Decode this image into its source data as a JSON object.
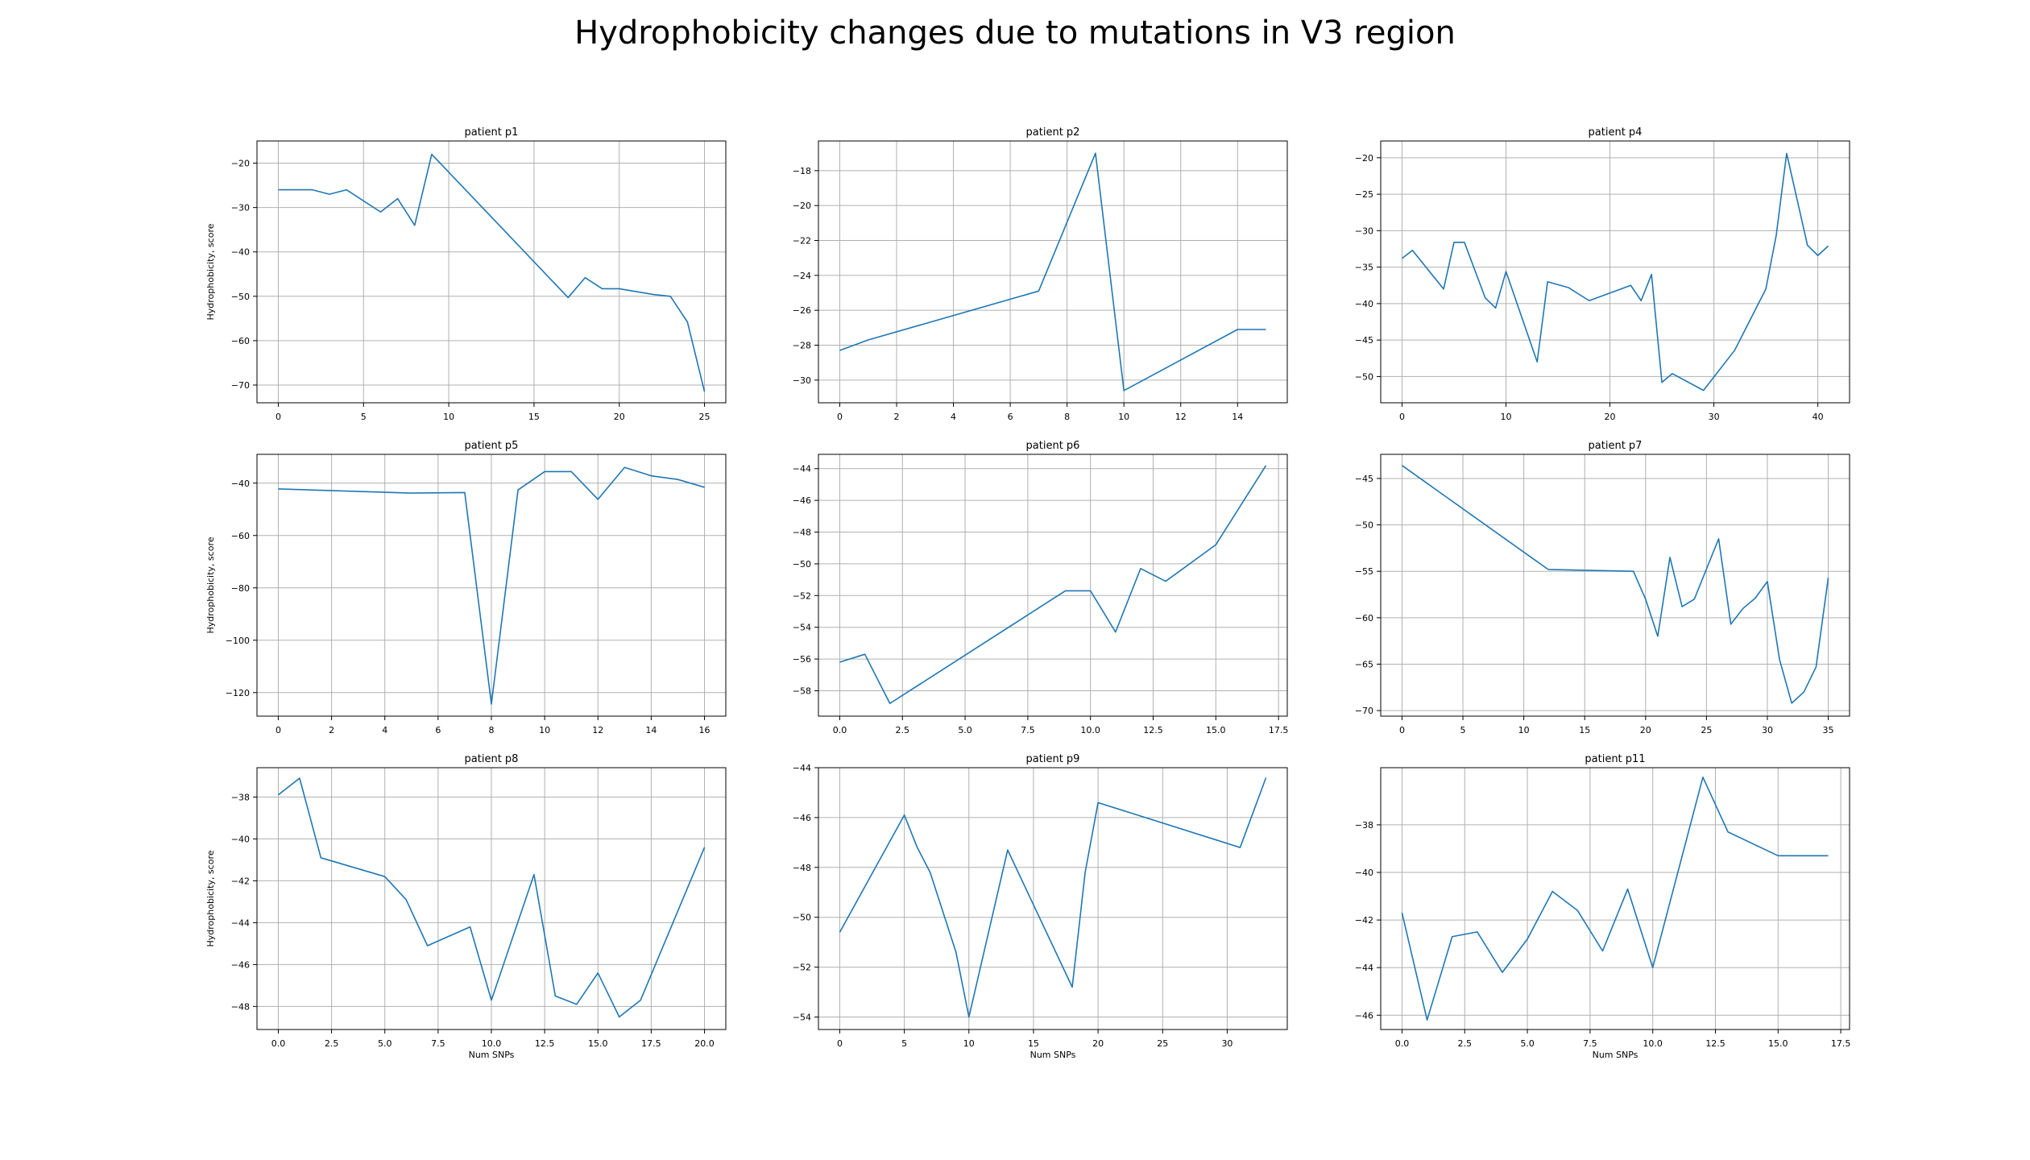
{
  "figure": {
    "title": "Hydrophobicity changes due to mutations in V3 region"
  },
  "colors": {
    "line": "#1f77b4",
    "grid": "#b0b0b0",
    "axis": "#000000"
  },
  "chart_data": [
    {
      "type": "line",
      "title": "patient p1",
      "ylabel": "Hydrophobicity, score",
      "xlabel": "",
      "xlim": [
        -1.25,
        26.25
      ],
      "ylim": [
        -74,
        -15
      ],
      "xticks": [
        0,
        5,
        10,
        15,
        20,
        25
      ],
      "xtick_labels": [
        "0",
        "5",
        "10",
        "15",
        "20",
        "25"
      ],
      "yticks": [
        -70,
        -60,
        -50,
        -40,
        -30,
        -20
      ],
      "ytick_labels": [
        "−70",
        "−60",
        "−50",
        "−40",
        "−30",
        "−20"
      ],
      "x": [
        0,
        2,
        3,
        4,
        6,
        7,
        8,
        9,
        17,
        18,
        19,
        20,
        22,
        23,
        24,
        25
      ],
      "y": [
        -26,
        -26,
        -27,
        -26,
        -31,
        -28,
        -34,
        -18,
        -50.3,
        -45.8,
        -48.3,
        -48.3,
        -49.6,
        -50,
        -55.8,
        -71.5
      ]
    },
    {
      "type": "line",
      "title": "patient p2",
      "ylabel": "",
      "xlabel": "",
      "xlim": [
        -0.75,
        15.75
      ],
      "ylim": [
        -31.3,
        -16.3
      ],
      "xticks": [
        0,
        2,
        4,
        6,
        8,
        10,
        12,
        14
      ],
      "xtick_labels": [
        "0",
        "2",
        "4",
        "6",
        "8",
        "10",
        "12",
        "14"
      ],
      "yticks": [
        -30,
        -28,
        -26,
        -24,
        -22,
        -20,
        -18
      ],
      "ytick_labels": [
        "−30",
        "−28",
        "−26",
        "−24",
        "−22",
        "−20",
        "−18"
      ],
      "x": [
        0,
        1,
        7,
        9,
        10,
        14,
        15
      ],
      "y": [
        -28.3,
        -27.7,
        -24.9,
        -17,
        -30.6,
        -27.1,
        -27.1
      ]
    },
    {
      "type": "line",
      "title": "patient p4",
      "ylabel": "",
      "xlabel": "",
      "xlim": [
        -2.05,
        43.05
      ],
      "ylim": [
        -53.6,
        -17.7
      ],
      "xticks": [
        0,
        10,
        20,
        30,
        40
      ],
      "xtick_labels": [
        "0",
        "10",
        "20",
        "30",
        "40"
      ],
      "yticks": [
        -50,
        -45,
        -40,
        -35,
        -30,
        -25,
        -20
      ],
      "ytick_labels": [
        "−50",
        "−45",
        "−40",
        "−35",
        "−30",
        "−25",
        "−20"
      ],
      "x": [
        0,
        1,
        4,
        5,
        6,
        8,
        9,
        10,
        13,
        14,
        16,
        18,
        22,
        23,
        24,
        25,
        26,
        29,
        32,
        35,
        36,
        37,
        39,
        40,
        41
      ],
      "y": [
        -33.8,
        -32.7,
        -38,
        -31.6,
        -31.6,
        -39.2,
        -40.6,
        -35.6,
        -48,
        -37,
        -37.8,
        -39.6,
        -37.5,
        -39.6,
        -36,
        -50.8,
        -49.6,
        -51.9,
        -46.4,
        -38,
        -30.6,
        -19.4,
        -32,
        -33.4,
        -32.1
      ]
    },
    {
      "type": "line",
      "title": "patient p5",
      "ylabel": "Hydrophobicity, score",
      "xlabel": "",
      "xlim": [
        -0.8,
        16.8
      ],
      "ylim": [
        -129,
        -29
      ],
      "xticks": [
        0,
        2,
        4,
        6,
        8,
        10,
        12,
        14,
        16
      ],
      "xtick_labels": [
        "0",
        "2",
        "4",
        "6",
        "8",
        "10",
        "12",
        "14",
        "16"
      ],
      "yticks": [
        -120,
        -100,
        -80,
        -60,
        -40
      ],
      "ytick_labels": [
        "−120",
        "−100",
        "−80",
        "−60",
        "−40"
      ],
      "x": [
        0,
        5,
        7,
        8,
        9,
        10,
        11,
        12,
        13,
        14,
        15,
        16
      ],
      "y": [
        -42.2,
        -43.8,
        -43.6,
        -124.4,
        -42.6,
        -35.6,
        -35.6,
        -46.2,
        -34,
        -37.2,
        -38.6,
        -41.6
      ]
    },
    {
      "type": "line",
      "title": "patient p6",
      "ylabel": "",
      "xlabel": "",
      "xlim": [
        -0.85,
        17.85
      ],
      "ylim": [
        -59.6,
        -43.1
      ],
      "xticks": [
        0,
        2.5,
        5,
        7.5,
        10,
        12.5,
        15,
        17.5
      ],
      "xtick_labels": [
        "0.0",
        "2.5",
        "5.0",
        "7.5",
        "10.0",
        "12.5",
        "15.0",
        "17.5"
      ],
      "yticks": [
        -58,
        -56,
        -54,
        -52,
        -50,
        -48,
        -46,
        -44
      ],
      "ytick_labels": [
        "−58",
        "−56",
        "−54",
        "−52",
        "−50",
        "−48",
        "−46",
        "−44"
      ],
      "x": [
        0,
        1,
        2,
        9,
        10,
        11,
        12,
        13,
        15,
        17
      ],
      "y": [
        -56.2,
        -55.7,
        -58.8,
        -51.7,
        -51.7,
        -54.3,
        -50.3,
        -51.1,
        -48.8,
        -43.8
      ]
    },
    {
      "type": "line",
      "title": "patient p7",
      "ylabel": "",
      "xlabel": "",
      "xlim": [
        -1.75,
        36.75
      ],
      "ylim": [
        -70.6,
        -42.4
      ],
      "xticks": [
        0,
        5,
        10,
        15,
        20,
        25,
        30,
        35
      ],
      "xtick_labels": [
        "0",
        "5",
        "10",
        "15",
        "20",
        "25",
        "30",
        "35"
      ],
      "yticks": [
        -70,
        -65,
        -60,
        -55,
        -50,
        -45
      ],
      "ytick_labels": [
        "−70",
        "−65",
        "−60",
        "−55",
        "−50",
        "−45"
      ],
      "x": [
        0,
        12,
        19,
        20,
        21,
        22,
        23,
        24,
        26,
        27,
        28,
        29,
        30,
        31,
        32,
        33,
        34,
        35
      ],
      "y": [
        -43.6,
        -54.8,
        -55,
        -58,
        -62,
        -53.5,
        -58.8,
        -58,
        -51.5,
        -60.7,
        -59,
        -57.9,
        -56.1,
        -64.5,
        -69.2,
        -68,
        -65.3,
        -55.7
      ]
    },
    {
      "type": "line",
      "title": "patient p8",
      "ylabel": "Hydrophobicity, score",
      "xlabel": "Num SNPs",
      "xlim": [
        -1,
        21
      ],
      "ylim": [
        -49.1,
        -36.6
      ],
      "xticks": [
        0,
        2.5,
        5,
        7.5,
        10,
        12.5,
        15,
        17.5,
        20
      ],
      "xtick_labels": [
        "0.0",
        "2.5",
        "5.0",
        "7.5",
        "10.0",
        "12.5",
        "15.0",
        "17.5",
        "20.0"
      ],
      "yticks": [
        -48,
        -46,
        -44,
        -42,
        -40,
        -38
      ],
      "ytick_labels": [
        "−48",
        "−46",
        "−44",
        "−42",
        "−40",
        "−38"
      ],
      "x": [
        0,
        1,
        2,
        5,
        6,
        7,
        9,
        10,
        12,
        13,
        14,
        15,
        16,
        17,
        20
      ],
      "y": [
        -37.9,
        -37.1,
        -40.9,
        -41.8,
        -42.9,
        -45.1,
        -44.2,
        -47.7,
        -41.7,
        -47.5,
        -47.9,
        -46.4,
        -48.5,
        -47.7,
        -40.4
      ]
    },
    {
      "type": "line",
      "title": "patient p9",
      "ylabel": "",
      "xlabel": "Num SNPs",
      "xlim": [
        -1.65,
        34.65
      ],
      "ylim": [
        -54.5,
        -44
      ],
      "xticks": [
        0,
        5,
        10,
        15,
        20,
        25,
        30
      ],
      "xtick_labels": [
        "0",
        "5",
        "10",
        "15",
        "20",
        "25",
        "30"
      ],
      "yticks": [
        -54,
        -52,
        -50,
        -48,
        -46,
        -44
      ],
      "ytick_labels": [
        "−54",
        "−52",
        "−50",
        "−48",
        "−46",
        "−44"
      ],
      "x": [
        0,
        5,
        6,
        7,
        9,
        10,
        13,
        18,
        19,
        20,
        31,
        33
      ],
      "y": [
        -50.6,
        -45.9,
        -47.2,
        -48.2,
        -51.4,
        -54,
        -47.3,
        -52.8,
        -48.2,
        -45.4,
        -47.2,
        -44.4
      ]
    },
    {
      "type": "line",
      "title": "patient p11",
      "ylabel": "",
      "xlabel": "Num SNPs",
      "xlim": [
        -0.85,
        17.85
      ],
      "ylim": [
        -46.6,
        -35.6
      ],
      "xticks": [
        0,
        2.5,
        5,
        7.5,
        10,
        12.5,
        15,
        17.5
      ],
      "xtick_labels": [
        "0.0",
        "2.5",
        "5.0",
        "7.5",
        "10.0",
        "12.5",
        "15.0",
        "17.5"
      ],
      "yticks": [
        -46,
        -44,
        -42,
        -40,
        -38
      ],
      "ytick_labels": [
        "−46",
        "−44",
        "−42",
        "−40",
        "−38"
      ],
      "x": [
        0,
        1,
        2,
        3,
        4,
        5,
        6,
        7,
        8,
        9,
        10,
        12,
        13,
        15,
        16,
        17
      ],
      "y": [
        -41.7,
        -46.2,
        -42.7,
        -42.5,
        -44.2,
        -42.8,
        -40.8,
        -41.6,
        -43.3,
        -40.7,
        -44,
        -36,
        -38.3,
        -39.3,
        -39.3,
        -39.3
      ]
    }
  ]
}
